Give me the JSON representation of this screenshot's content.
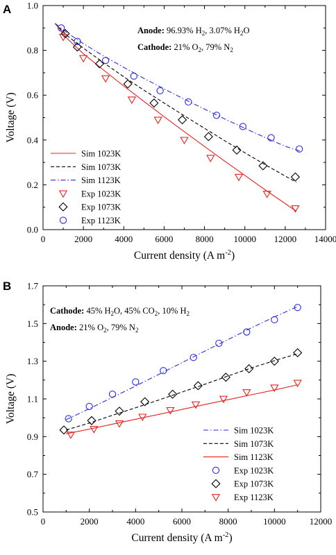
{
  "chart_data": [
    {
      "panel": "A",
      "type": "line",
      "xlabel": "Current density (A m",
      "xlabel_sup": "-2",
      "xlabel_end": ")",
      "ylabel": "Voltage (V)",
      "xlim": [
        0,
        14000
      ],
      "ylim": [
        0.0,
        1.0
      ],
      "xticks": [
        0,
        2000,
        4000,
        6000,
        8000,
        10000,
        12000,
        14000
      ],
      "yticks": [
        0.0,
        0.2,
        0.4,
        0.6,
        0.8,
        1.0
      ],
      "ytick_labels": [
        "0.0",
        "0.2",
        "0.4",
        "0.6",
        "0.8",
        "1.0"
      ],
      "grid": false,
      "legend_position": "bottom-left",
      "annotation": [
        [
          {
            "t": "Anode:",
            "b": true
          },
          {
            "t": " 96.93% H"
          },
          {
            "t": "2",
            "sub": true
          },
          {
            "t": ", 3.07% H"
          },
          {
            "t": "2",
            "sub": true
          },
          {
            "t": "O"
          }
        ],
        [
          {
            "t": "Cathode:",
            "b": true
          },
          {
            "t": " 21% O"
          },
          {
            "t": "2",
            "sub": true
          },
          {
            "t": ", 79% N"
          },
          {
            "t": "2",
            "sub": true
          }
        ]
      ],
      "series": [
        {
          "name": "Sim 1023K",
          "kind": "line",
          "dash": "solid",
          "color": "#e8211f",
          "x": [
            600,
            1200,
            2000,
            3000,
            4000,
            5000,
            6000,
            7000,
            8000,
            9000,
            10000,
            11000,
            12000,
            12550
          ],
          "y": [
            0.92,
            0.852,
            0.785,
            0.712,
            0.641,
            0.572,
            0.504,
            0.437,
            0.371,
            0.306,
            0.242,
            0.178,
            0.116,
            0.082
          ]
        },
        {
          "name": "Sim 1073K",
          "kind": "line",
          "dash": "dashed",
          "color": "#000000",
          "x": [
            600,
            1200,
            2000,
            3000,
            4000,
            5000,
            6000,
            7000,
            8000,
            9000,
            10000,
            11000,
            12000,
            12550
          ],
          "y": [
            0.92,
            0.865,
            0.81,
            0.745,
            0.682,
            0.622,
            0.565,
            0.508,
            0.452,
            0.397,
            0.343,
            0.29,
            0.239,
            0.212
          ]
        },
        {
          "name": "Sim 1123K",
          "kind": "line",
          "dash": "dashdot",
          "color": "#2a2ae0",
          "x": [
            600,
            1200,
            2000,
            3000,
            4000,
            5000,
            6000,
            7000,
            8000,
            9000,
            10000,
            11000,
            12000,
            12750
          ],
          "y": [
            0.92,
            0.878,
            0.83,
            0.775,
            0.724,
            0.675,
            0.628,
            0.582,
            0.538,
            0.494,
            0.452,
            0.411,
            0.372,
            0.35
          ]
        },
        {
          "name": "Exp 1023K",
          "kind": "marker",
          "marker": "triangle-down",
          "color": "#e8211f",
          "x": [
            1000,
            2000,
            3100,
            4400,
            5700,
            7000,
            8300,
            9700,
            11100,
            12500
          ],
          "y": [
            0.86,
            0.765,
            0.675,
            0.58,
            0.49,
            0.4,
            0.32,
            0.235,
            0.16,
            0.095
          ]
        },
        {
          "name": "Exp 1073K",
          "kind": "marker",
          "marker": "diamond",
          "color": "#000000",
          "x": [
            1100,
            1700,
            2800,
            4200,
            5500,
            6900,
            8200,
            9600,
            10900,
            12500
          ],
          "y": [
            0.875,
            0.815,
            0.74,
            0.65,
            0.565,
            0.49,
            0.415,
            0.355,
            0.285,
            0.235
          ]
        },
        {
          "name": "Exp 1123K",
          "kind": "marker",
          "marker": "circle",
          "color": "#2a2ae0",
          "x": [
            900,
            1700,
            3100,
            4500,
            5800,
            7200,
            8600,
            9900,
            11300,
            12700
          ],
          "y": [
            0.9,
            0.84,
            0.755,
            0.685,
            0.62,
            0.57,
            0.51,
            0.46,
            0.41,
            0.36
          ]
        }
      ]
    },
    {
      "panel": "B",
      "type": "line",
      "xlabel": "Current density (A m",
      "xlabel_sup": "-2",
      "xlabel_end": ")",
      "ylabel": "Voltage (V)",
      "xlim": [
        0,
        12000
      ],
      "ylim": [
        0.5,
        1.7
      ],
      "xticks": [
        0,
        2000,
        4000,
        6000,
        8000,
        10000,
        12000
      ],
      "yticks": [
        0.5,
        0.7,
        0.9,
        1.1,
        1.3,
        1.5,
        1.7
      ],
      "ytick_labels": [
        "0.5",
        "0.7",
        "0.9",
        "1.1",
        "1.3",
        "1.5",
        "1.7"
      ],
      "grid": false,
      "legend_position": "bottom-right",
      "annotation": [
        [
          {
            "t": "Cathode:",
            "b": true
          },
          {
            "t": " 45% H"
          },
          {
            "t": "2",
            "sub": true
          },
          {
            "t": "O, 45% CO"
          },
          {
            "t": "2",
            "sub": true
          },
          {
            "t": ", 10% H"
          },
          {
            "t": "2",
            "sub": true
          }
        ],
        [
          {
            "t": "Anode:",
            "b": true
          },
          {
            "t": " 21% O"
          },
          {
            "t": "2",
            "sub": true
          },
          {
            "t": ", 79% N"
          },
          {
            "t": "2",
            "sub": true
          }
        ]
      ],
      "series": [
        {
          "name": "Sim 1023K",
          "kind": "line",
          "dash": "dashdot",
          "color": "#2a2ae0",
          "x": [
            1000,
            2000,
            3000,
            4000,
            5000,
            6000,
            7000,
            8000,
            9000,
            10000,
            11000
          ],
          "y": [
            0.99,
            1.048,
            1.108,
            1.168,
            1.23,
            1.292,
            1.354,
            1.415,
            1.477,
            1.535,
            1.59
          ]
        },
        {
          "name": "Sim 1073K",
          "kind": "line",
          "dash": "dashed",
          "color": "#000000",
          "x": [
            1000,
            2000,
            3000,
            4000,
            5000,
            6000,
            7000,
            8000,
            9000,
            10000,
            11000
          ],
          "y": [
            0.935,
            0.972,
            1.013,
            1.053,
            1.094,
            1.136,
            1.178,
            1.222,
            1.264,
            1.303,
            1.34
          ]
        },
        {
          "name": "Sim 1123K",
          "kind": "line",
          "dash": "solid",
          "color": "#e8211f",
          "x": [
            1000,
            2000,
            3000,
            4000,
            5000,
            6000,
            7000,
            8000,
            9000,
            10000,
            11000
          ],
          "y": [
            0.915,
            0.94,
            0.966,
            0.992,
            1.018,
            1.044,
            1.07,
            1.096,
            1.122,
            1.147,
            1.175
          ]
        },
        {
          "name": "Exp 1023K",
          "kind": "marker",
          "marker": "circle",
          "color": "#2a2ae0",
          "x": [
            1100,
            2000,
            3000,
            4000,
            5200,
            6500,
            7600,
            8800,
            10000,
            11000
          ],
          "y": [
            0.995,
            1.06,
            1.125,
            1.19,
            1.25,
            1.32,
            1.395,
            1.455,
            1.52,
            1.585
          ]
        },
        {
          "name": "Exp 1073K",
          "kind": "marker",
          "marker": "diamond",
          "color": "#000000",
          "x": [
            900,
            2100,
            3300,
            4400,
            5600,
            6700,
            7900,
            8900,
            10000,
            11000
          ],
          "y": [
            0.935,
            0.985,
            1.035,
            1.085,
            1.125,
            1.17,
            1.215,
            1.26,
            1.3,
            1.345
          ]
        },
        {
          "name": "Exp 1123K",
          "kind": "marker",
          "marker": "triangle-down",
          "color": "#e8211f",
          "x": [
            1200,
            2200,
            3300,
            4300,
            5500,
            6600,
            7800,
            8800,
            10000,
            11000
          ],
          "y": [
            0.91,
            0.94,
            0.97,
            1.005,
            1.04,
            1.07,
            1.1,
            1.135,
            1.16,
            1.185
          ]
        }
      ]
    }
  ]
}
